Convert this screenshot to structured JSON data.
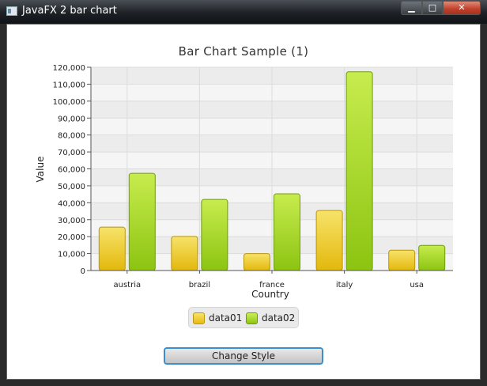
{
  "window": {
    "title": "JavaFX 2 bar chart",
    "controls": {
      "minimize": "▁",
      "maximize": "□",
      "close": "✕"
    },
    "icon": "java-app-icon"
  },
  "chart_data": {
    "type": "bar",
    "title": "Bar Chart Sample (1)",
    "xlabel": "Country",
    "ylabel": "Value",
    "categories": [
      "austria",
      "brazil",
      "france",
      "italy",
      "usa"
    ],
    "series": [
      {
        "name": "data01",
        "values": [
          25601,
          20148,
          10000,
          35407,
          12000
        ],
        "color": "#f0c418"
      },
      {
        "name": "data02",
        "values": [
          57401,
          41941,
          45263,
          117320,
          14845
        ],
        "color": "#a6d928"
      }
    ],
    "ylim": [
      0,
      120000
    ],
    "yticks": [
      "0",
      "10,000",
      "20,000",
      "30,000",
      "40,000",
      "50,000",
      "60,000",
      "70,000",
      "80,000",
      "90,000",
      "100,000",
      "110,000",
      "120,000"
    ],
    "grid": true,
    "legend_position": "bottom"
  },
  "button": {
    "label": "Change Style"
  }
}
